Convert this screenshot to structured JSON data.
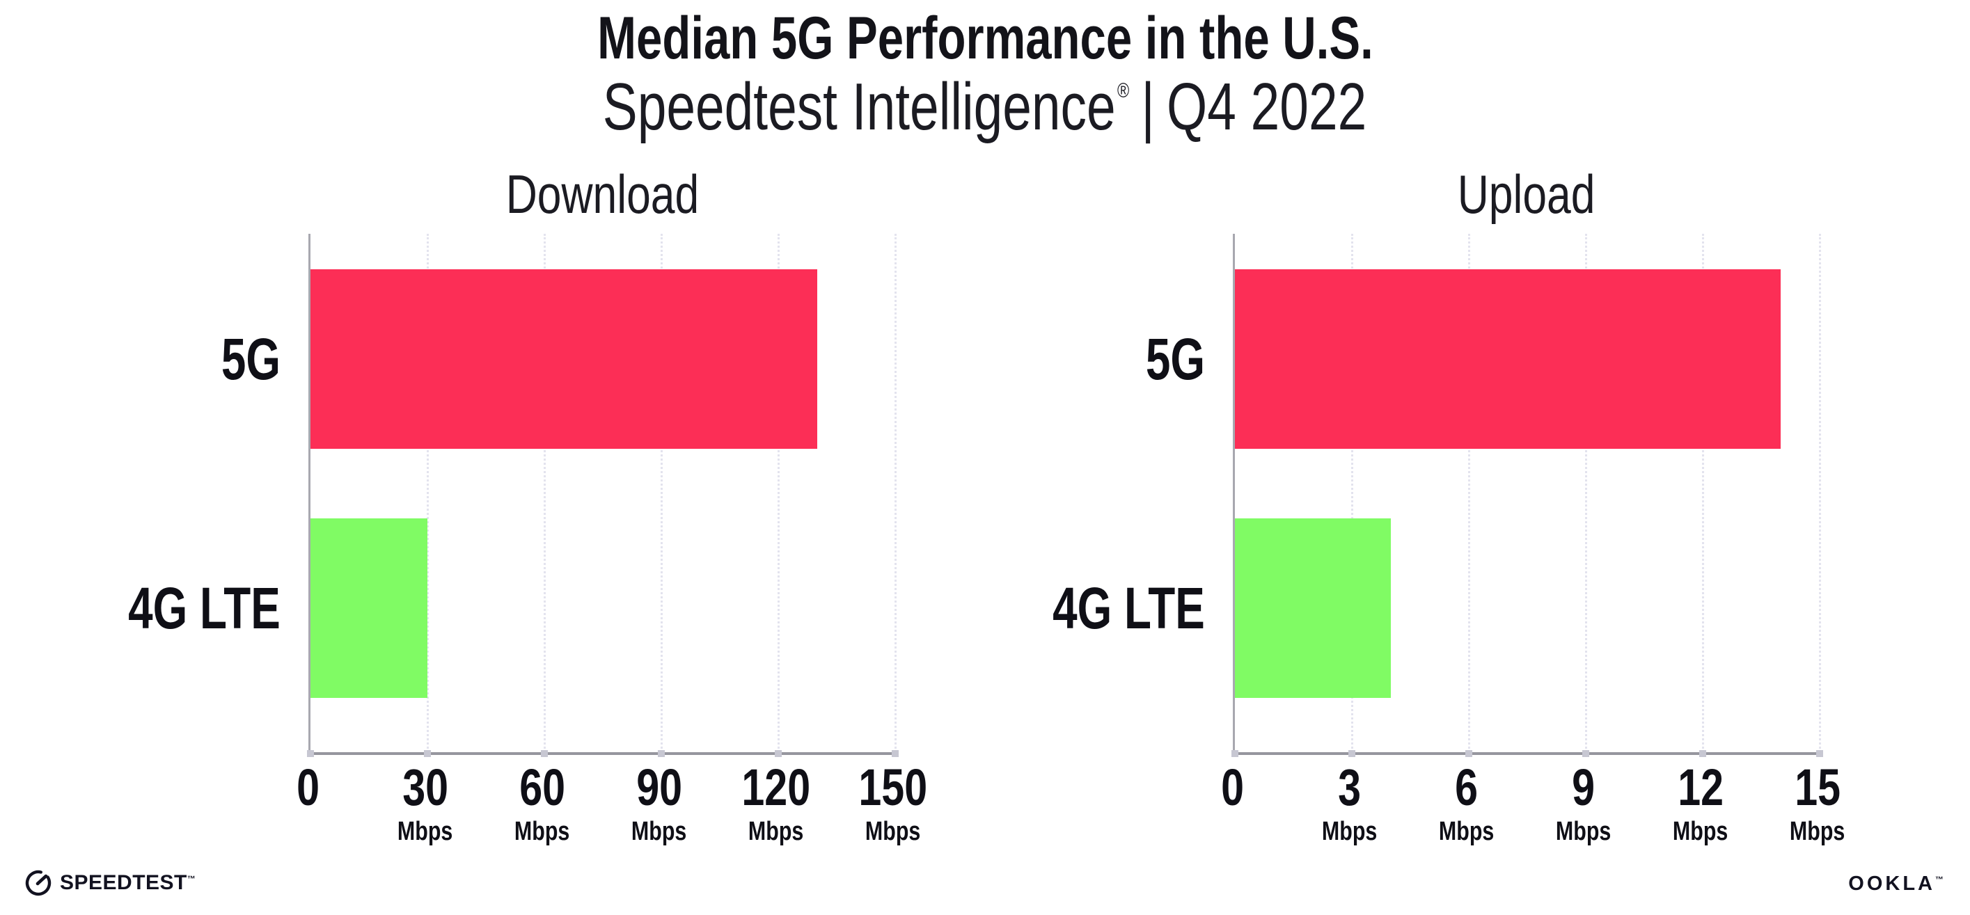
{
  "header": {
    "title": "Median 5G Performance in the U.S.",
    "subtitle": {
      "brand": "Speedtest Intelligence",
      "registered": "®",
      "separator": "|",
      "period": "Q4 2022"
    }
  },
  "chart_data": [
    {
      "type": "bar",
      "orientation": "horizontal",
      "title": "Download",
      "categories": [
        "5G",
        "4G LTE"
      ],
      "values": [
        130,
        30
      ],
      "unit": "Mbps",
      "xlabel": "",
      "ylabel": "",
      "xlim": [
        0,
        150
      ],
      "xticks": [
        0,
        30,
        60,
        90,
        120,
        150
      ],
      "bar_colors": [
        "#fc2e56",
        "#80fb64"
      ],
      "grid": "vertical-dotted",
      "legend": "none"
    },
    {
      "type": "bar",
      "orientation": "horizontal",
      "title": "Upload",
      "categories": [
        "5G",
        "4G LTE"
      ],
      "values": [
        14,
        4
      ],
      "unit": "Mbps",
      "xlabel": "",
      "ylabel": "",
      "xlim": [
        0,
        15
      ],
      "xticks": [
        0,
        3,
        6,
        9,
        12,
        15
      ],
      "bar_colors": [
        "#fc2e56",
        "#80fb64"
      ],
      "grid": "vertical-dotted",
      "legend": "none"
    }
  ],
  "footer": {
    "speedtest": {
      "label": "SPEEDTEST",
      "trademark": "™"
    },
    "ookla": {
      "label": "OOKLA",
      "trademark": "™"
    }
  },
  "colors": {
    "bar_5g": "#fc2e56",
    "bar_4g_lte": "#80fb64",
    "axis_line": "#96969e",
    "gridline": "#e3e3ee",
    "text": "#15151e",
    "background": "#ffffff"
  }
}
